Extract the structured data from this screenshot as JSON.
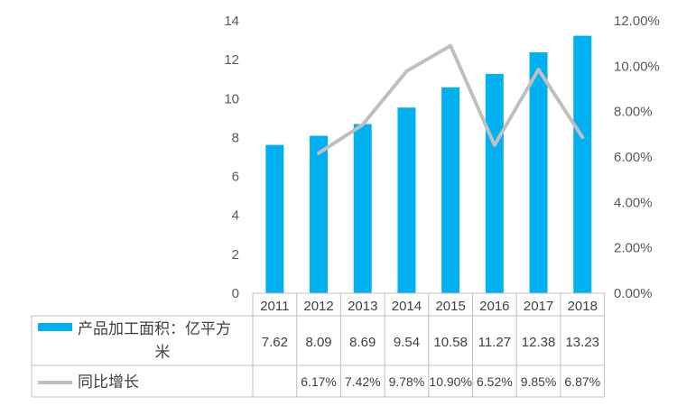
{
  "chart_data": {
    "type": "bar",
    "categories": [
      "2011",
      "2012",
      "2013",
      "2014",
      "2015",
      "2016",
      "2017",
      "2018"
    ],
    "series": [
      {
        "name": "产品加工面积：亿平方米",
        "type": "bar",
        "axis": "left",
        "color": "#00B0F0",
        "values": [
          7.62,
          8.09,
          8.69,
          9.54,
          10.58,
          11.27,
          12.38,
          13.23
        ],
        "labels": [
          "7.62",
          "8.09",
          "8.69",
          "9.54",
          "10.58",
          "11.27",
          "12.38",
          "13.23"
        ]
      },
      {
        "name": "同比增长",
        "type": "line",
        "axis": "right",
        "color": "#BFBFBF",
        "values": [
          null,
          6.17,
          7.42,
          9.78,
          10.9,
          6.52,
          9.85,
          6.87
        ],
        "labels": [
          "",
          "6.17%",
          "7.42%",
          "9.78%",
          "10.90%",
          "6.52%",
          "9.85%",
          "6.87%"
        ]
      }
    ],
    "y_left": {
      "ylim": [
        0,
        14
      ],
      "ticks": [
        "0",
        "2",
        "4",
        "6",
        "8",
        "10",
        "12",
        "14"
      ]
    },
    "y_right": {
      "ylim": [
        0,
        12
      ],
      "ticks": [
        "0.00%",
        "2.00%",
        "4.00%",
        "6.00%",
        "8.00%",
        "10.00%",
        "12.00%"
      ]
    },
    "grid": false,
    "legend": "data-table",
    "title": "",
    "xlabel": "",
    "ylabel": ""
  }
}
